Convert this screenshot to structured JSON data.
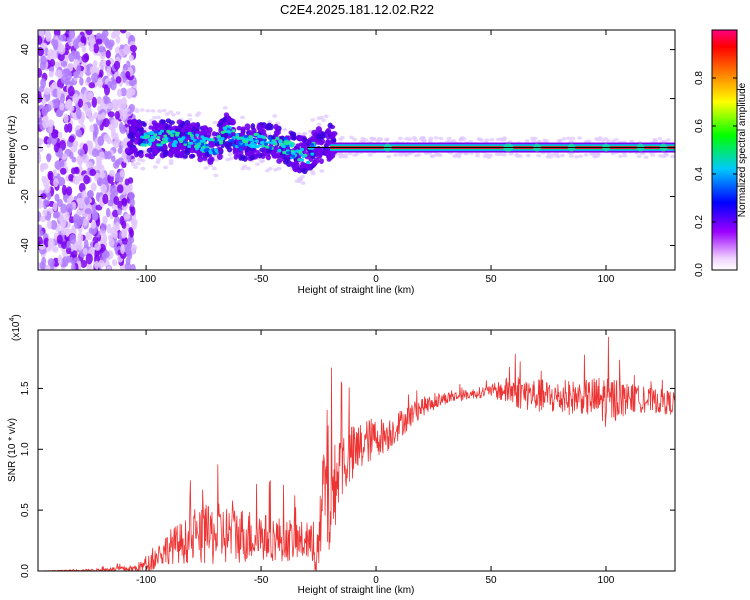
{
  "title": "C2E4.2025.181.12.02.R22",
  "chart_data": [
    {
      "type": "heatmap",
      "xlabel": "Height of straight line (km)",
      "ylabel": "Frequency (Hz)",
      "xlim": [
        -147,
        130
      ],
      "ylim": [
        -50,
        48
      ],
      "x_ticks": [
        -100,
        -50,
        0,
        50,
        100
      ],
      "x_tick_labels": [
        "-100",
        "-50",
        "0",
        "50",
        "100"
      ],
      "y_ticks": [
        -40,
        -20,
        0,
        20,
        40
      ],
      "y_tick_labels": [
        "-40",
        "-20",
        "0",
        "20",
        "40"
      ],
      "colorbar": {
        "label": "Normalized spectral amplitude",
        "range": [
          0,
          1
        ],
        "ticks": [
          0.0,
          0.2,
          0.4,
          0.6,
          0.8
        ],
        "tick_labels": [
          "0.0",
          "0.2",
          "0.4",
          "0.6",
          "0.8"
        ],
        "colors": [
          "#f0d8ff",
          "#8800ff",
          "#0000ff",
          "#00ccff",
          "#00ff00",
          "#ffff00",
          "#ff8800",
          "#ff0000",
          "#ff0088"
        ]
      },
      "ridge": {
        "x": [
          -110,
          -100,
          -90,
          -80,
          -70,
          -65,
          -60,
          -50,
          -40,
          -35,
          -30,
          -28,
          -25,
          -20,
          -15,
          -10,
          0,
          130
        ],
        "frequency": [
          5,
          3,
          4,
          3,
          0,
          7,
          2,
          3,
          1,
          -2,
          -4,
          -1,
          1,
          2,
          0,
          0.5,
          0,
          0
        ]
      },
      "grid": false
    },
    {
      "type": "line",
      "xlabel": "Height of straight line (km)",
      "ylabel": "SNR (10 * v/v)",
      "y_multiplier_label": "(x10",
      "y_multiplier_exp": "4",
      "xlim": [
        -147,
        130
      ],
      "ylim": [
        0,
        1.98
      ],
      "x_ticks": [
        -100,
        -50,
        0,
        50,
        100
      ],
      "x_tick_labels": [
        "-100",
        "-50",
        "0",
        "50",
        "100"
      ],
      "y_ticks": [
        0,
        0.5,
        1.0,
        1.5
      ],
      "y_tick_labels": [
        "0.0",
        "0.5",
        "1.0",
        "1.5"
      ],
      "color": "#ee3333",
      "series": [
        {
          "x": [
            -147,
            -120,
            -105,
            -100,
            -95,
            -90,
            -80,
            -70,
            -60,
            -50,
            -40,
            -30,
            -25,
            -22,
            -20,
            -18,
            -15,
            -10,
            -5,
            0,
            5,
            10,
            15,
            20,
            25,
            30,
            40,
            50,
            60,
            70,
            80,
            90,
            100,
            110,
            120,
            130
          ],
          "y": [
            0.0,
            0.01,
            0.02,
            0.05,
            0.12,
            0.2,
            0.26,
            0.3,
            0.3,
            0.28,
            0.26,
            0.24,
            0.15,
            0.8,
            0.55,
            0.7,
            0.9,
            0.95,
            1.05,
            1.1,
            1.12,
            1.2,
            1.28,
            1.35,
            1.38,
            1.42,
            1.45,
            1.48,
            1.48,
            1.44,
            1.42,
            1.43,
            1.4,
            1.42,
            1.4,
            1.38
          ],
          "spread": [
            0.0,
            0.01,
            0.03,
            0.06,
            0.1,
            0.14,
            0.2,
            0.26,
            0.24,
            0.2,
            0.18,
            0.16,
            0.2,
            0.7,
            0.5,
            0.35,
            0.3,
            0.25,
            0.2,
            0.16,
            0.14,
            0.12,
            0.1,
            0.08,
            0.06,
            0.05,
            0.04,
            0.05,
            0.14,
            0.14,
            0.14,
            0.14,
            0.22,
            0.12,
            0.1,
            0.1
          ]
        }
      ],
      "grid": false
    }
  ]
}
